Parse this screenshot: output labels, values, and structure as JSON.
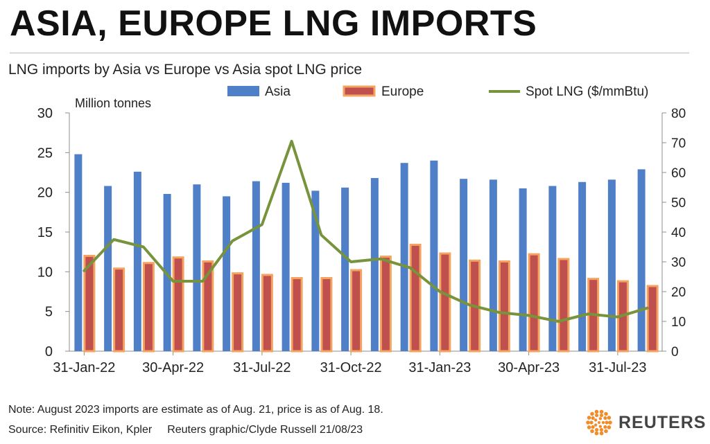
{
  "header": {
    "title": "ASIA, EUROPE LNG IMPORTS",
    "subtitle": "LNG imports by Asia vs Europe vs Asia spot LNG price"
  },
  "footer": {
    "note": "Note: August 2023 imports are estimate as of Aug. 21, price is as of Aug. 18.",
    "source": "Source: Refinitiv Eikon, Kpler",
    "credit": "Reuters graphic/Clyde Russell 21/08/23",
    "logo_text": "REUTERS"
  },
  "colors": {
    "asia": "#4f7fc7",
    "europe_fill": "#c0504d",
    "europe_outline": "#f4a460",
    "spot": "#77933c",
    "axis": "#8c8c8c"
  },
  "chart_data": {
    "type": "bar",
    "categories": [
      "31-Jan-22",
      "28-Feb-22",
      "31-Mar-22",
      "30-Apr-22",
      "31-May-22",
      "30-Jun-22",
      "31-Jul-22",
      "31-Aug-22",
      "30-Sep-22",
      "31-Oct-22",
      "30-Nov-22",
      "31-Dec-22",
      "31-Jan-23",
      "28-Feb-23",
      "31-Mar-23",
      "30-Apr-23",
      "31-May-23",
      "30-Jun-23",
      "31-Jul-23",
      "31-Aug-23"
    ],
    "tick_labels": [
      "31-Jan-22",
      "30-Apr-22",
      "31-Jul-22",
      "31-Oct-22",
      "31-Jan-23",
      "30-Apr-23",
      "31-Jul-23"
    ],
    "tick_indices": [
      0,
      3,
      6,
      9,
      12,
      15,
      18
    ],
    "series": [
      {
        "name": "Asia",
        "type": "bar",
        "axis": "left",
        "values": [
          24.8,
          20.8,
          22.6,
          19.8,
          21.0,
          19.5,
          21.4,
          21.2,
          20.2,
          20.6,
          21.8,
          23.7,
          24.0,
          21.7,
          21.6,
          20.5,
          20.8,
          21.3,
          21.6,
          22.9
        ]
      },
      {
        "name": "Europe",
        "type": "bar",
        "axis": "left",
        "values": [
          12.0,
          10.4,
          11.1,
          11.8,
          11.3,
          9.8,
          9.6,
          9.2,
          9.2,
          10.2,
          11.9,
          13.4,
          12.3,
          11.4,
          11.3,
          12.2,
          11.6,
          9.1,
          8.8,
          8.2
        ]
      },
      {
        "name": "Spot LNG ($/mmBtu)",
        "type": "line",
        "axis": "right",
        "values": [
          27.0,
          37.5,
          35.0,
          23.5,
          23.5,
          37.0,
          42.5,
          70.5,
          39.0,
          30.0,
          31.0,
          28.0,
          20.0,
          15.5,
          13.0,
          12.0,
          10.0,
          12.5,
          11.5,
          14.5
        ]
      }
    ],
    "ylabel": "Million tonnes",
    "ylim": [
      0,
      30
    ],
    "yticks": [
      0,
      5,
      10,
      15,
      20,
      25,
      30
    ],
    "y2lim": [
      0,
      80
    ],
    "y2ticks": [
      0,
      10,
      20,
      30,
      40,
      50,
      60,
      70,
      80
    ],
    "grid": false,
    "legend_position": "top"
  }
}
